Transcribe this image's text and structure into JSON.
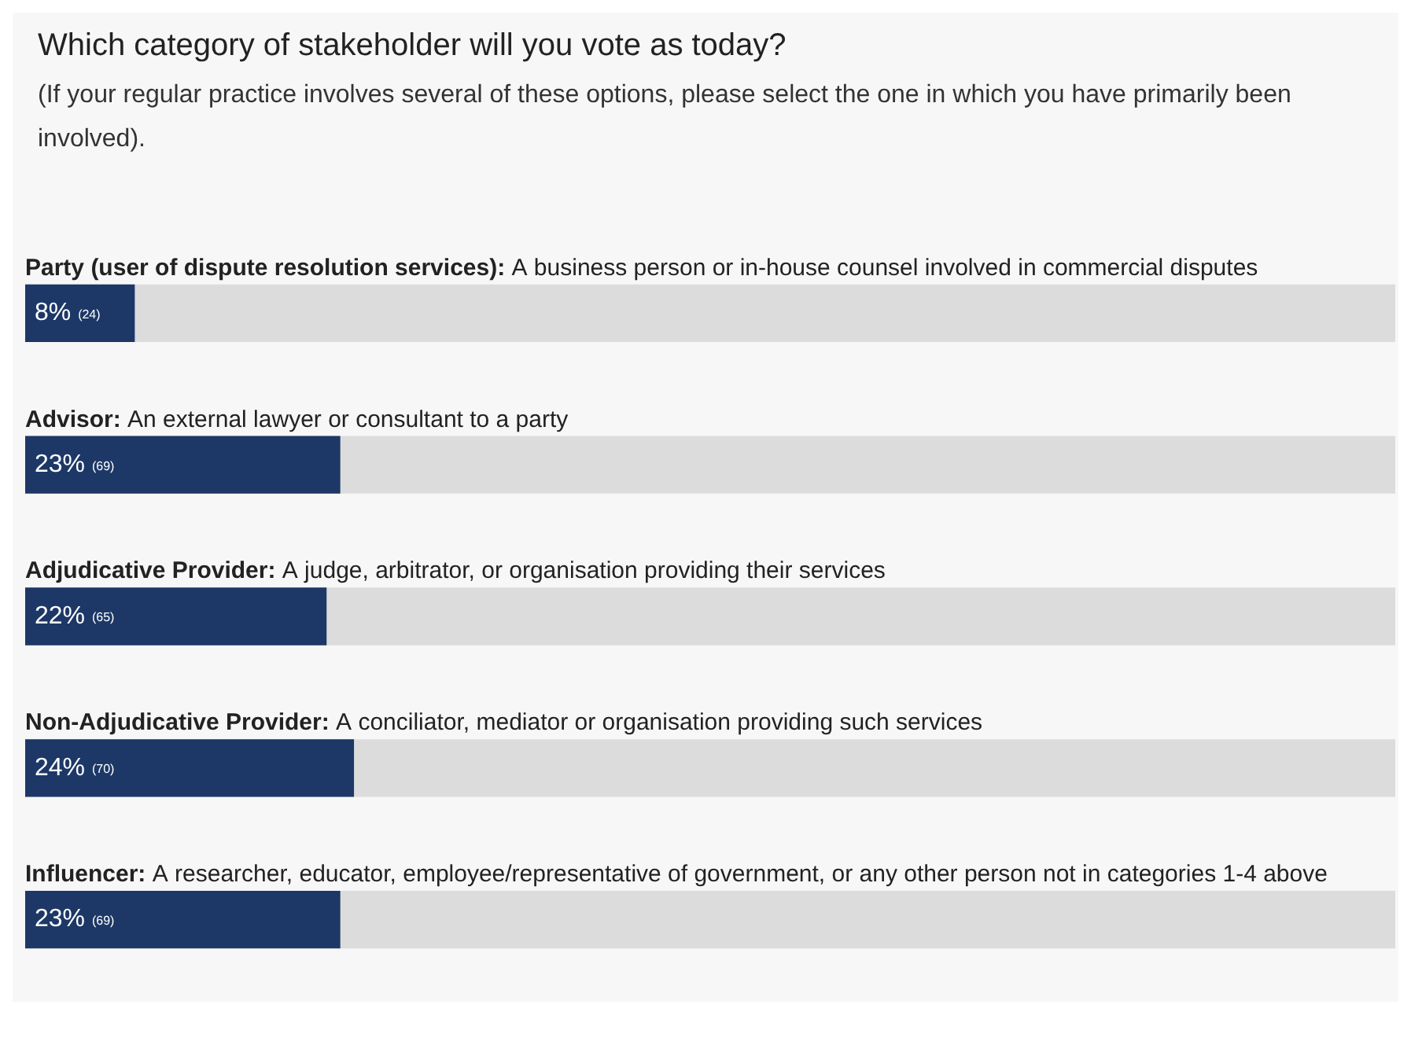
{
  "chart_data": {
    "type": "bar",
    "orientation": "horizontal",
    "title": "Which category of stakeholder will you vote as today?",
    "subtitle": "(If your regular practice involves several of these options, please select the one in which you have primarily been involved).",
    "categories": [
      "Party (user of dispute resolution services): A business person or in-house counsel involved in commercial disputes",
      "Advisor: An external lawyer or consultant to a party",
      "Adjudicative Provider: A judge, arbitrator, or organisation providing their services",
      "Non-Adjudicative Provider: A conciliator, mediator or organisation providing such services",
      "Influencer: A researcher, educator, employee/representative of government, or any other person not in categories 1-4 above"
    ],
    "values": [
      8,
      23,
      22,
      24,
      23
    ],
    "value_labels": [
      "8% (24)",
      "23% (69)",
      "22% (65)",
      "24% (70)",
      "23% (69)"
    ],
    "color": "#1d3866",
    "xlim": [
      0,
      100
    ]
  }
}
